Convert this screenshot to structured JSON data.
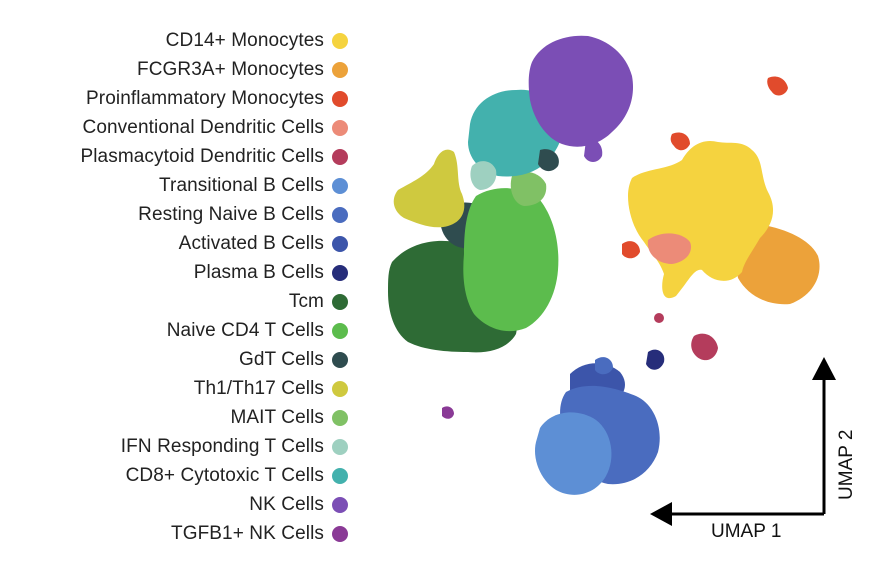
{
  "chart_data": {
    "type": "scatter",
    "title": "",
    "xlabel": "UMAP 1",
    "ylabel": "UMAP 2",
    "legend_position": "left",
    "grid": false,
    "series": [
      {
        "name": "CD14+ Monocytes",
        "color": "#f5d33f"
      },
      {
        "name": "FCGR3A+ Monocytes",
        "color": "#eca23a"
      },
      {
        "name": "Proinflammatory Monocytes",
        "color": "#e14b2c"
      },
      {
        "name": "Conventional Dendritic Cells",
        "color": "#ec8b78"
      },
      {
        "name": "Plasmacytoid Dendritic Cells",
        "color": "#b43c5c"
      },
      {
        "name": "Transitional B Cells",
        "color": "#5d8fd5"
      },
      {
        "name": "Resting Naive B Cells",
        "color": "#4a6cbf"
      },
      {
        "name": "Activated B Cells",
        "color": "#3c55aa"
      },
      {
        "name": "Plasma B Cells",
        "color": "#262d7a"
      },
      {
        "name": "Tcm",
        "color": "#2e6b35"
      },
      {
        "name": "Naive CD4 T Cells",
        "color": "#5cbc4d"
      },
      {
        "name": "GdT Cells",
        "color": "#2f4c4f"
      },
      {
        "name": "Th1/Th17 Cells",
        "color": "#cfc93f"
      },
      {
        "name": "MAIT Cells",
        "color": "#80c165"
      },
      {
        "name": "IFN Responding T Cells",
        "color": "#9ed0c0"
      },
      {
        "name": "CD8+ Cytotoxic T Cells",
        "color": "#43b1ad"
      },
      {
        "name": "NK Cells",
        "color": "#7b4eb5"
      },
      {
        "name": "TGFB1+ NK Cells",
        "color": "#8a3a96"
      }
    ]
  }
}
